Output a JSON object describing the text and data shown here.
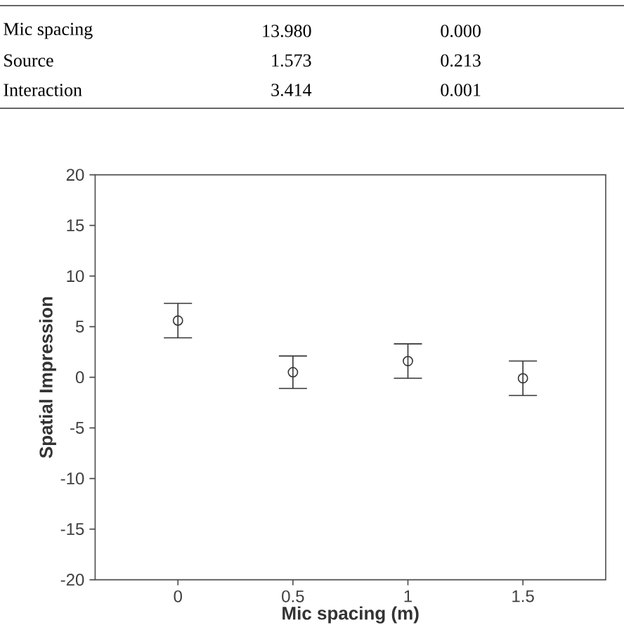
{
  "chart_data": {
    "type": "scatter",
    "xlabel": "Mic spacing (m)",
    "ylabel": "Spatial Impression",
    "x": [
      0,
      0.5,
      1,
      1.5
    ],
    "series": [
      {
        "color": "#333333",
        "values": [
          5.6,
          0.5,
          1.6,
          -0.1
        ],
        "errors": [
          1.7,
          1.6,
          1.7,
          1.7
        ]
      }
    ],
    "xlim": [
      -0.36,
      1.86
    ],
    "xticks": [
      0,
      0.5,
      1,
      1.5
    ],
    "ylim": [
      -20,
      20
    ],
    "yticks": [
      -20,
      -15,
      -10,
      -5,
      0,
      5,
      10,
      15,
      20
    ],
    "marker": "circle",
    "grid": false,
    "annotations": [
      "Mic spacing",
      "13.980",
      "0.000",
      "Source",
      "1.573",
      "0.213",
      "Interaction",
      "3.414",
      "0.001"
    ]
  }
}
